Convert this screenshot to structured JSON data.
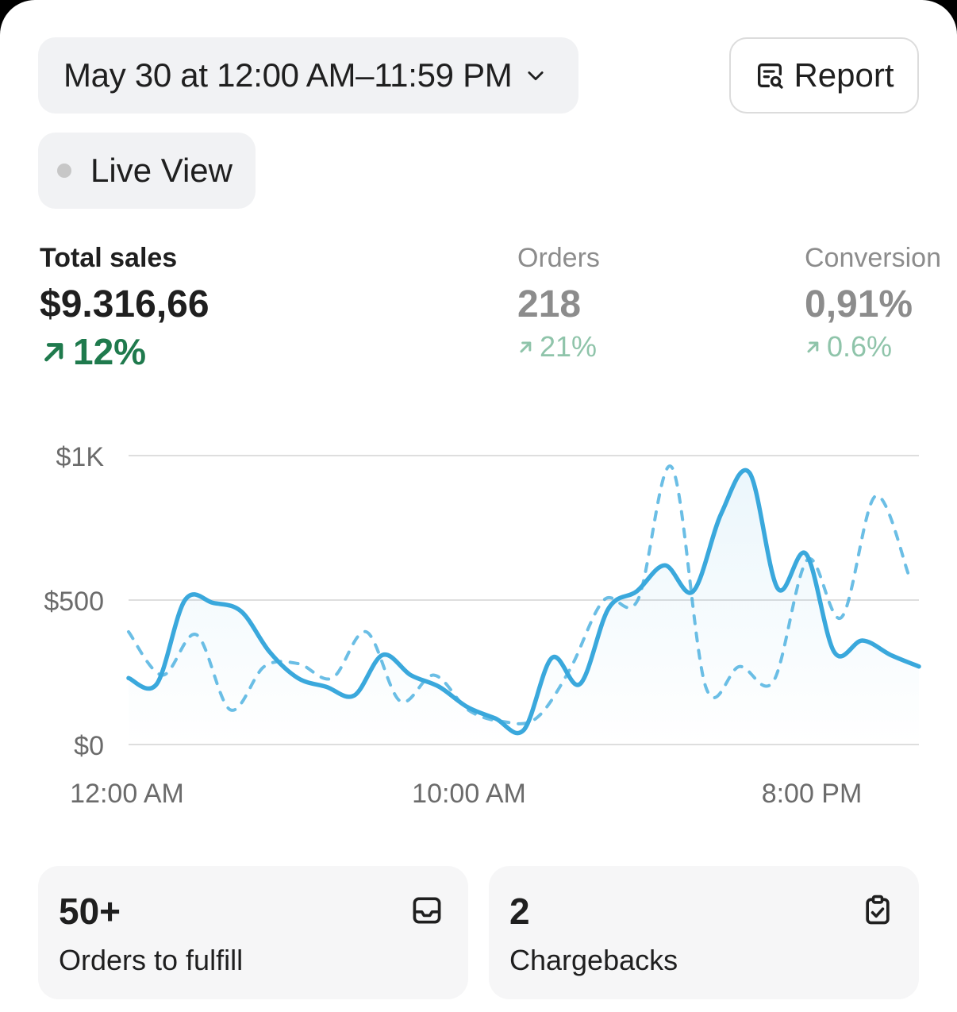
{
  "header": {
    "date_range": "May 30 at 12:00 AM–11:59 PM",
    "report_label": "Report",
    "live_label": "Live View"
  },
  "metrics": [
    {
      "label": "Total sales",
      "value": "$9.316,66",
      "delta": "12%"
    },
    {
      "label": "Orders",
      "value": "218",
      "delta": "21%"
    },
    {
      "label": "Conversion",
      "value": "0,91%",
      "delta": "0.6%"
    }
  ],
  "colors": {
    "accent_line": "#3aa8dc",
    "positive": "#1f7a4d",
    "positive_dim": "#8fc4aa",
    "muted_text": "#8c8c8c"
  },
  "chart_data": {
    "type": "line",
    "y_ticks": [
      "$1K",
      "$500",
      "$0"
    ],
    "ylim": [
      0,
      1000
    ],
    "x_ticks": [
      "12:00 AM",
      "10:00 AM",
      "8:00 PM"
    ],
    "grid": true,
    "series": [
      {
        "style": "solid",
        "values": [
          230,
          210,
          500,
          490,
          460,
          320,
          230,
          200,
          170,
          310,
          240,
          200,
          130,
          90,
          50,
          300,
          210,
          470,
          530,
          620,
          530,
          800,
          940,
          540,
          660,
          320,
          360,
          310,
          270
        ]
      },
      {
        "style": "dashed",
        "values": [
          390,
          240,
          380,
          120,
          270,
          280,
          230,
          390,
          150,
          240,
          120,
          80,
          90,
          260,
          500,
          500,
          960,
          200,
          270,
          220,
          640,
          440,
          860,
          580
        ]
      }
    ]
  },
  "cards": [
    {
      "value": "50+",
      "label": "Orders to fulfill",
      "icon": "inbox-icon"
    },
    {
      "value": "2",
      "label": "Chargebacks",
      "icon": "clipboard-check-icon"
    }
  ]
}
